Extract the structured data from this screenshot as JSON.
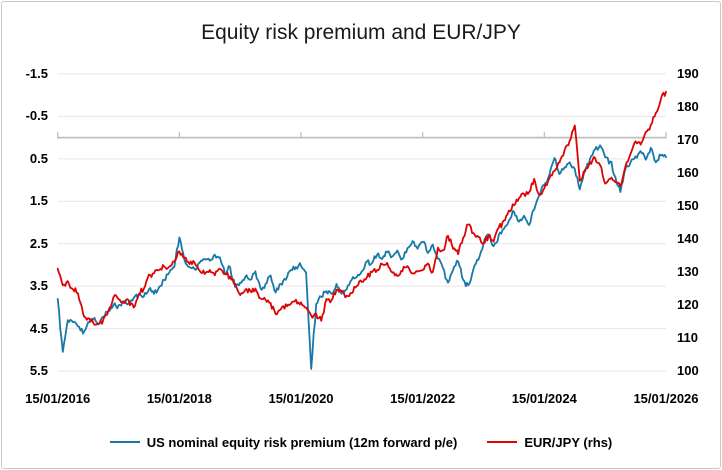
{
  "title": "Equity risk premium and EUR/JPY",
  "legend": {
    "items": [
      {
        "label": "US nominal equity risk premium (12m forward p/e)",
        "color": "#1878A8"
      },
      {
        "label": "EUR/JPY (rhs)",
        "color": "#DC0404"
      }
    ]
  },
  "axes": {
    "left_ticks": [
      "-1.5",
      "-0.5",
      "0.5",
      "1.5",
      "2.5",
      "3.5",
      "4.5",
      "5.5"
    ],
    "right_ticks": [
      "190",
      "180",
      "170",
      "160",
      "150",
      "140",
      "130",
      "120",
      "110",
      "100"
    ],
    "x_ticks": [
      "15/01/2016",
      "15/01/2018",
      "15/01/2020",
      "15/01/2022",
      "15/01/2024",
      "15/01/2026"
    ]
  },
  "colors": {
    "frame_border": "#c9c9c9",
    "grid": "#e7e7e7",
    "zero_axis": "#bfbfbf",
    "title_text": "#1a1a1a",
    "erp_line": "#1878A8",
    "eurjpy_line": "#DC0404"
  },
  "chart_data": {
    "type": "line",
    "title": "Equity risk premium and EUR/JPY",
    "x_start": "15/01/2016",
    "x_end": "15/01/2026",
    "sample_interval": "monthly",
    "left_axis": {
      "range": [
        -1.5,
        5.5
      ],
      "inverted": true,
      "ticks": [
        -1.5,
        -0.5,
        0.5,
        1.5,
        2.5,
        3.5,
        4.5,
        5.5
      ]
    },
    "right_axis": {
      "range": [
        100,
        190
      ],
      "ticks": [
        190,
        180,
        170,
        160,
        150,
        140,
        130,
        120,
        110,
        100
      ]
    },
    "grid": {
      "horizontal": true,
      "vertical": false
    },
    "zero_axis_line": {
      "value_on_left_axis": 0,
      "tick_every_years": 2
    },
    "legend_position": "bottom",
    "noise_amplitude": {
      "erp": 0.09,
      "eurjpy": 1.1
    },
    "series": [
      {
        "name": "US nominal equity risk premium (12m forward p/e)",
        "axis": "left",
        "color": "#1878A8",
        "monthly_values": [
          3.8,
          5.05,
          4.3,
          4.35,
          4.45,
          4.62,
          4.35,
          4.28,
          4.4,
          4.22,
          4.08,
          3.95,
          3.95,
          3.85,
          3.9,
          3.78,
          3.68,
          3.74,
          3.58,
          3.68,
          3.52,
          3.35,
          3.18,
          3.05,
          2.35,
          2.88,
          3.05,
          3.1,
          2.95,
          2.86,
          2.9,
          2.76,
          2.82,
          3.22,
          3.05,
          3.52,
          3.42,
          3.28,
          3.35,
          3.15,
          3.55,
          3.45,
          3.25,
          3.65,
          3.45,
          3.35,
          3.12,
          3.05,
          3.02,
          3.18,
          5.45,
          3.92,
          3.75,
          3.62,
          3.68,
          3.45,
          3.68,
          3.58,
          3.35,
          3.28,
          3.15,
          2.92,
          2.96,
          2.76,
          2.86,
          2.7,
          2.8,
          2.66,
          2.86,
          2.6,
          2.44,
          2.62,
          2.46,
          2.72,
          2.52,
          2.85,
          3.08,
          3.42,
          3.12,
          2.92,
          3.35,
          3.48,
          3.1,
          2.88,
          2.5,
          2.28,
          2.56,
          2.3,
          2.15,
          1.95,
          1.74,
          1.98,
          1.84,
          2.06,
          1.7,
          1.36,
          1.12,
          0.88,
          0.48,
          0.86,
          0.7,
          0.58,
          0.74,
          1.22,
          0.76,
          0.5,
          0.28,
          0.18,
          0.46,
          0.56,
          0.92,
          1.28,
          0.74,
          0.58,
          0.44,
          0.32,
          0.52,
          0.24,
          0.58,
          0.42,
          0.46
        ]
      },
      {
        "name": "EUR/JPY (rhs)",
        "axis": "right",
        "color": "#DC0404",
        "monthly_values": [
          131.0,
          126.0,
          127.2,
          124.8,
          123.5,
          117.5,
          116.0,
          114.6,
          114.4,
          115.6,
          118.2,
          122.4,
          121.8,
          120.6,
          121.4,
          119.2,
          123.2,
          125.0,
          129.2,
          129.6,
          130.6,
          131.6,
          131.6,
          133.2,
          136.2,
          134.4,
          132.4,
          132.8,
          130.4,
          129.4,
          130.6,
          129.0,
          131.0,
          129.4,
          128.6,
          126.4,
          123.0,
          124.6,
          124.2,
          125.0,
          122.0,
          121.6,
          120.6,
          117.2,
          118.6,
          120.2,
          120.4,
          121.6,
          120.8,
          119.2,
          116.8,
          117.4,
          115.2,
          121.8,
          121.4,
          124.6,
          124.2,
          122.8,
          123.6,
          125.8,
          127.0,
          128.4,
          130.0,
          130.6,
          132.4,
          132.8,
          129.8,
          128.8,
          130.2,
          131.8,
          129.6,
          130.2,
          130.6,
          132.6,
          130.0,
          137.4,
          136.6,
          141.0,
          137.0,
          135.4,
          140.4,
          144.4,
          141.8,
          140.6,
          138.6,
          141.0,
          139.2,
          143.4,
          145.6,
          148.6,
          150.2,
          152.4,
          153.6,
          154.2,
          158.2,
          153.4,
          155.4,
          158.4,
          160.6,
          163.2,
          167.0,
          169.8,
          174.4,
          157.6,
          160.4,
          163.4,
          164.6,
          162.4,
          156.8,
          158.2,
          157.2,
          156.0,
          162.0,
          165.8,
          169.6,
          168.6,
          172.4,
          174.6,
          178.2,
          182.4,
          184.6
        ]
      }
    ]
  }
}
